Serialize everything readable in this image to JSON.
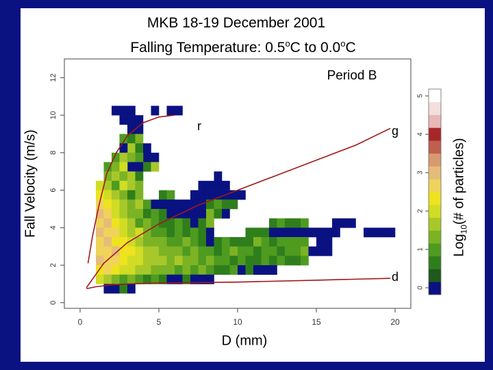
{
  "slide": {
    "background": "#0a1282"
  },
  "title": {
    "line1": "MKB 18-19 December 2001",
    "line2_prefix": "Falling Temperature:  0.5",
    "line2_sup1": "o",
    "line2_mid": "C to 0.0",
    "line2_sup2": "o",
    "line2_suffix": "C"
  },
  "chart_data": {
    "type": "heatmap",
    "panel_label": "Period B",
    "xlabel": "D (mm)",
    "ylabel": "Fall Velocity (m/s)",
    "xlim": [
      -1,
      21
    ],
    "ylim": [
      -0.3,
      13
    ],
    "x_ticks": [
      "0",
      "5",
      "10",
      "15",
      "20"
    ],
    "y_ticks": [
      "0",
      "2",
      "4",
      "6",
      "8",
      "10",
      "12"
    ],
    "colorbar": {
      "label": "Log",
      "label_sub": "10",
      "label_rest": "(# of particles)",
      "ticks": [
        "0",
        "1",
        "2",
        "3",
        "4",
        "5"
      ],
      "colors": [
        "#0a1282",
        "#1f5a1a",
        "#2f7e1c",
        "#4e9b20",
        "#7bb324",
        "#a8c82a",
        "#d1dc24",
        "#eee31f",
        "#efd35a",
        "#e6bc7a",
        "#d79a6e",
        "#c25e4e",
        "#a8262a",
        "#e9b7b7",
        "#f4dede",
        "#ffffff"
      ]
    },
    "curves": [
      {
        "name": "r",
        "color": "#a01818",
        "x": [
          0.5,
          0.8,
          1.2,
          1.7,
          2.3,
          3.0,
          4.0,
          5.0,
          6.0
        ],
        "y": [
          2.1,
          3.6,
          5.2,
          6.9,
          8.0,
          8.9,
          9.6,
          9.9,
          10.0
        ]
      },
      {
        "name": "g",
        "color": "#a01818",
        "x": [
          0.4,
          1.5,
          3.0,
          5.0,
          7.5,
          10.0,
          12.5,
          15.0,
          17.5,
          19.7
        ],
        "y": [
          0.8,
          2.1,
          3.2,
          4.2,
          5.2,
          6.0,
          6.8,
          7.6,
          8.4,
          9.3
        ]
      },
      {
        "name": "d",
        "color": "#a01818",
        "x": [
          0.4,
          1.0,
          2.0,
          3.0,
          5.0,
          10.0,
          15.0,
          19.7
        ],
        "y": [
          0.75,
          0.85,
          0.95,
          1.0,
          1.05,
          1.1,
          1.2,
          1.3
        ]
      }
    ],
    "heat_cells": [
      [
        2.0,
        10.0,
        0
      ],
      [
        2.5,
        10.0,
        0
      ],
      [
        3.0,
        10.0,
        0
      ],
      [
        3.0,
        9.5,
        0
      ],
      [
        5.5,
        10.0,
        0
      ],
      [
        6.0,
        10.0,
        0
      ],
      [
        4.5,
        10.0,
        0
      ],
      [
        2.5,
        9.5,
        0
      ],
      [
        3.5,
        9.5,
        0
      ],
      [
        3.5,
        9.0,
        0
      ],
      [
        3.0,
        9.0,
        0
      ],
      [
        2.5,
        8.5,
        3
      ],
      [
        3.0,
        8.5,
        2
      ],
      [
        3.5,
        8.5,
        4
      ],
      [
        3.0,
        8.0,
        5
      ],
      [
        3.5,
        8.0,
        2
      ],
      [
        4.0,
        8.0,
        0
      ],
      [
        4.0,
        7.5,
        0
      ],
      [
        2.5,
        8.0,
        0
      ],
      [
        2.0,
        7.5,
        3
      ],
      [
        2.5,
        7.5,
        5
      ],
      [
        3.0,
        7.5,
        4
      ],
      [
        3.5,
        7.5,
        3
      ],
      [
        4.5,
        7.5,
        0
      ],
      [
        3.5,
        7.0,
        0
      ],
      [
        3.0,
        7.0,
        0
      ],
      [
        1.5,
        7.0,
        3
      ],
      [
        2.0,
        7.0,
        4
      ],
      [
        2.5,
        7.0,
        6
      ],
      [
        4.0,
        7.0,
        2
      ],
      [
        4.5,
        7.0,
        5
      ],
      [
        1.5,
        6.5,
        4
      ],
      [
        2.0,
        6.5,
        5
      ],
      [
        2.5,
        6.5,
        4
      ],
      [
        3.0,
        6.5,
        5
      ],
      [
        3.5,
        6.5,
        2
      ],
      [
        8.5,
        6.5,
        0
      ],
      [
        1.0,
        6.0,
        6
      ],
      [
        1.5,
        6.0,
        5
      ],
      [
        2.0,
        6.0,
        3
      ],
      [
        2.5,
        6.0,
        6
      ],
      [
        3.0,
        6.0,
        5
      ],
      [
        3.5,
        6.0,
        4
      ],
      [
        7.5,
        6.0,
        0
      ],
      [
        8.0,
        6.0,
        0
      ],
      [
        8.5,
        6.0,
        0
      ],
      [
        9.0,
        6.0,
        0
      ],
      [
        1.0,
        5.5,
        7
      ],
      [
        1.5,
        5.5,
        6
      ],
      [
        2.0,
        5.5,
        5
      ],
      [
        2.5,
        5.5,
        4
      ],
      [
        3.0,
        5.5,
        2
      ],
      [
        3.5,
        5.5,
        4
      ],
      [
        5.0,
        5.5,
        2
      ],
      [
        5.5,
        5.5,
        3
      ],
      [
        7.0,
        5.5,
        0
      ],
      [
        7.5,
        5.5,
        0
      ],
      [
        8.0,
        5.5,
        0
      ],
      [
        8.5,
        5.5,
        0
      ],
      [
        9.0,
        5.5,
        0
      ],
      [
        9.5,
        5.5,
        0
      ],
      [
        10.0,
        5.5,
        0
      ],
      [
        1.0,
        5.0,
        8
      ],
      [
        1.5,
        5.0,
        7
      ],
      [
        2.0,
        5.0,
        6
      ],
      [
        2.5,
        5.0,
        5
      ],
      [
        3.0,
        5.0,
        4
      ],
      [
        3.5,
        5.0,
        5
      ],
      [
        4.0,
        5.0,
        3
      ],
      [
        4.5,
        5.0,
        0
      ],
      [
        5.0,
        5.0,
        0
      ],
      [
        5.5,
        5.0,
        0
      ],
      [
        6.0,
        5.0,
        0
      ],
      [
        6.5,
        5.0,
        0
      ],
      [
        7.0,
        5.0,
        0
      ],
      [
        7.5,
        5.0,
        0
      ],
      [
        8.0,
        5.0,
        2
      ],
      [
        8.5,
        5.0,
        3
      ],
      [
        9.0,
        5.0,
        2
      ],
      [
        9.5,
        5.0,
        2
      ],
      [
        1.0,
        4.5,
        9
      ],
      [
        1.5,
        4.5,
        8
      ],
      [
        2.0,
        4.5,
        6
      ],
      [
        2.5,
        4.5,
        5
      ],
      [
        3.0,
        4.5,
        4
      ],
      [
        3.5,
        4.5,
        4
      ],
      [
        4.0,
        4.5,
        2
      ],
      [
        4.5,
        4.5,
        3
      ],
      [
        5.0,
        4.5,
        2
      ],
      [
        5.5,
        4.5,
        0
      ],
      [
        6.0,
        4.5,
        0
      ],
      [
        6.5,
        4.5,
        0
      ],
      [
        7.0,
        4.5,
        0
      ],
      [
        7.5,
        4.5,
        0
      ],
      [
        8.0,
        4.5,
        4
      ],
      [
        8.5,
        4.5,
        2
      ],
      [
        9.0,
        4.5,
        0
      ],
      [
        1.0,
        4.0,
        8
      ],
      [
        1.5,
        4.0,
        9
      ],
      [
        2.0,
        4.0,
        7
      ],
      [
        2.5,
        4.0,
        6
      ],
      [
        3.0,
        4.0,
        5
      ],
      [
        3.5,
        4.0,
        3
      ],
      [
        4.0,
        4.0,
        4
      ],
      [
        4.5,
        4.0,
        3
      ],
      [
        5.0,
        4.0,
        2
      ],
      [
        5.5,
        4.0,
        2
      ],
      [
        6.0,
        4.0,
        3
      ],
      [
        6.5,
        4.0,
        2
      ],
      [
        7.0,
        4.0,
        0
      ],
      [
        7.5,
        4.0,
        2
      ],
      [
        8.0,
        4.0,
        4
      ],
      [
        12.0,
        4.0,
        2
      ],
      [
        12.5,
        4.0,
        3
      ],
      [
        13.0,
        4.0,
        2
      ],
      [
        13.5,
        4.0,
        2
      ],
      [
        14.0,
        4.0,
        3
      ],
      [
        16.0,
        4.0,
        0
      ],
      [
        16.5,
        4.0,
        0
      ],
      [
        17.0,
        4.0,
        0
      ],
      [
        1.0,
        3.5,
        9
      ],
      [
        1.5,
        3.5,
        8
      ],
      [
        2.0,
        3.5,
        8
      ],
      [
        2.5,
        3.5,
        6
      ],
      [
        3.0,
        3.5,
        5
      ],
      [
        3.5,
        3.5,
        6
      ],
      [
        4.0,
        3.5,
        4
      ],
      [
        4.5,
        3.5,
        3
      ],
      [
        5.0,
        3.5,
        3
      ],
      [
        5.5,
        3.5,
        2
      ],
      [
        6.0,
        3.5,
        3
      ],
      [
        6.5,
        3.5,
        2
      ],
      [
        7.0,
        3.5,
        3
      ],
      [
        7.5,
        3.5,
        2
      ],
      [
        8.0,
        3.5,
        0
      ],
      [
        10.5,
        3.5,
        2
      ],
      [
        11.0,
        3.5,
        2
      ],
      [
        11.5,
        3.5,
        2
      ],
      [
        12.0,
        3.5,
        0
      ],
      [
        12.5,
        3.5,
        0
      ],
      [
        13.0,
        3.5,
        0
      ],
      [
        13.5,
        3.5,
        0
      ],
      [
        14.0,
        3.5,
        0
      ],
      [
        14.5,
        3.5,
        0
      ],
      [
        15.0,
        3.5,
        0
      ],
      [
        15.5,
        3.5,
        0
      ],
      [
        16.0,
        3.5,
        0
      ],
      [
        18.0,
        3.5,
        0
      ],
      [
        18.5,
        3.5,
        0
      ],
      [
        19.0,
        3.5,
        0
      ],
      [
        19.5,
        3.5,
        0
      ],
      [
        1.0,
        3.0,
        8
      ],
      [
        1.5,
        3.0,
        9
      ],
      [
        2.0,
        3.0,
        7
      ],
      [
        2.5,
        3.0,
        7
      ],
      [
        3.0,
        3.0,
        6
      ],
      [
        3.5,
        3.0,
        5
      ],
      [
        4.0,
        3.0,
        4
      ],
      [
        4.5,
        3.0,
        4
      ],
      [
        5.0,
        3.0,
        4
      ],
      [
        5.5,
        3.0,
        3
      ],
      [
        6.0,
        3.0,
        3
      ],
      [
        6.5,
        3.0,
        4
      ],
      [
        7.0,
        3.0,
        3
      ],
      [
        7.5,
        3.0,
        2
      ],
      [
        8.0,
        3.0,
        0
      ],
      [
        8.5,
        3.0,
        2
      ],
      [
        9.0,
        3.0,
        3
      ],
      [
        9.5,
        3.0,
        2
      ],
      [
        10.0,
        3.0,
        2
      ],
      [
        10.5,
        3.0,
        2
      ],
      [
        11.0,
        3.0,
        4
      ],
      [
        11.5,
        3.0,
        3
      ],
      [
        12.0,
        3.0,
        2
      ],
      [
        12.5,
        3.0,
        3
      ],
      [
        13.0,
        3.0,
        3
      ],
      [
        13.5,
        3.0,
        3
      ],
      [
        14.0,
        3.0,
        3
      ],
      [
        15.0,
        3.0,
        0
      ],
      [
        15.5,
        3.0,
        0
      ],
      [
        1.0,
        2.5,
        8
      ],
      [
        1.5,
        2.5,
        8
      ],
      [
        2.0,
        2.5,
        9
      ],
      [
        2.5,
        2.5,
        7
      ],
      [
        3.0,
        2.5,
        7
      ],
      [
        3.5,
        2.5,
        6
      ],
      [
        4.0,
        2.5,
        5
      ],
      [
        4.5,
        2.5,
        5
      ],
      [
        5.0,
        2.5,
        4
      ],
      [
        5.5,
        2.5,
        4
      ],
      [
        6.0,
        2.5,
        4
      ],
      [
        6.5,
        2.5,
        3
      ],
      [
        7.0,
        2.5,
        4
      ],
      [
        7.5,
        2.5,
        3
      ],
      [
        8.0,
        2.5,
        3
      ],
      [
        8.5,
        2.5,
        2
      ],
      [
        9.0,
        2.5,
        3
      ],
      [
        9.5,
        2.5,
        4
      ],
      [
        10.0,
        2.5,
        3
      ],
      [
        10.5,
        2.5,
        3
      ],
      [
        11.0,
        2.5,
        2
      ],
      [
        11.5,
        2.5,
        3
      ],
      [
        12.0,
        2.5,
        3
      ],
      [
        12.5,
        2.5,
        2
      ],
      [
        13.0,
        2.5,
        3
      ],
      [
        13.5,
        2.5,
        3
      ],
      [
        14.0,
        2.5,
        4
      ],
      [
        14.5,
        2.5,
        0
      ],
      [
        15.0,
        2.5,
        0
      ],
      [
        15.5,
        2.5,
        0
      ],
      [
        1.0,
        2.0,
        9
      ],
      [
        1.5,
        2.0,
        8
      ],
      [
        2.0,
        2.0,
        8
      ],
      [
        2.5,
        2.0,
        7
      ],
      [
        3.0,
        2.0,
        6
      ],
      [
        3.5,
        2.0,
        6
      ],
      [
        4.0,
        2.0,
        5
      ],
      [
        4.5,
        2.0,
        5
      ],
      [
        5.0,
        2.0,
        5
      ],
      [
        5.5,
        2.0,
        4
      ],
      [
        6.0,
        2.0,
        5
      ],
      [
        6.5,
        2.0,
        4
      ],
      [
        7.0,
        2.0,
        4
      ],
      [
        7.5,
        2.0,
        3
      ],
      [
        8.0,
        2.0,
        4
      ],
      [
        8.5,
        2.0,
        3
      ],
      [
        9.0,
        2.0,
        3
      ],
      [
        9.5,
        2.0,
        2
      ],
      [
        10.0,
        2.0,
        3
      ],
      [
        10.5,
        2.0,
        2
      ],
      [
        11.0,
        2.0,
        2
      ],
      [
        11.5,
        2.0,
        3
      ],
      [
        12.0,
        2.0,
        2
      ],
      [
        12.5,
        2.0,
        3
      ],
      [
        13.0,
        2.0,
        2
      ],
      [
        13.5,
        2.0,
        2
      ],
      [
        14.0,
        2.0,
        3
      ],
      [
        1.0,
        1.5,
        7
      ],
      [
        1.5,
        1.5,
        8
      ],
      [
        2.0,
        1.5,
        7
      ],
      [
        2.5,
        1.5,
        6
      ],
      [
        3.0,
        1.5,
        6
      ],
      [
        3.5,
        1.5,
        5
      ],
      [
        4.0,
        1.5,
        5
      ],
      [
        4.5,
        1.5,
        4
      ],
      [
        5.0,
        1.5,
        4
      ],
      [
        5.5,
        1.5,
        4
      ],
      [
        6.0,
        1.5,
        3
      ],
      [
        6.5,
        1.5,
        4
      ],
      [
        7.0,
        1.5,
        3
      ],
      [
        7.5,
        1.5,
        4
      ],
      [
        8.0,
        1.5,
        3
      ],
      [
        8.5,
        1.5,
        2
      ],
      [
        9.0,
        1.5,
        2
      ],
      [
        9.5,
        1.5,
        3
      ],
      [
        10.0,
        1.5,
        0
      ],
      [
        10.5,
        1.5,
        2
      ],
      [
        11.0,
        1.5,
        0
      ],
      [
        11.5,
        1.5,
        0
      ],
      [
        12.0,
        1.5,
        0
      ],
      [
        1.0,
        1.0,
        6
      ],
      [
        1.5,
        1.0,
        5
      ],
      [
        2.0,
        1.0,
        4
      ],
      [
        2.5,
        1.0,
        3
      ],
      [
        3.0,
        1.0,
        4
      ],
      [
        3.5,
        1.0,
        3
      ],
      [
        4.0,
        1.0,
        2
      ],
      [
        4.5,
        1.0,
        3
      ],
      [
        5.0,
        1.0,
        2
      ],
      [
        5.5,
        1.0,
        0
      ],
      [
        6.0,
        1.0,
        0
      ],
      [
        6.5,
        1.0,
        2
      ],
      [
        7.0,
        1.0,
        0
      ],
      [
        7.5,
        1.0,
        0
      ],
      [
        8.0,
        1.0,
        0
      ],
      [
        1.5,
        0.5,
        0
      ],
      [
        2.0,
        0.5,
        0
      ],
      [
        2.5,
        0.5,
        2
      ],
      [
        3.0,
        0.5,
        0
      ]
    ]
  }
}
